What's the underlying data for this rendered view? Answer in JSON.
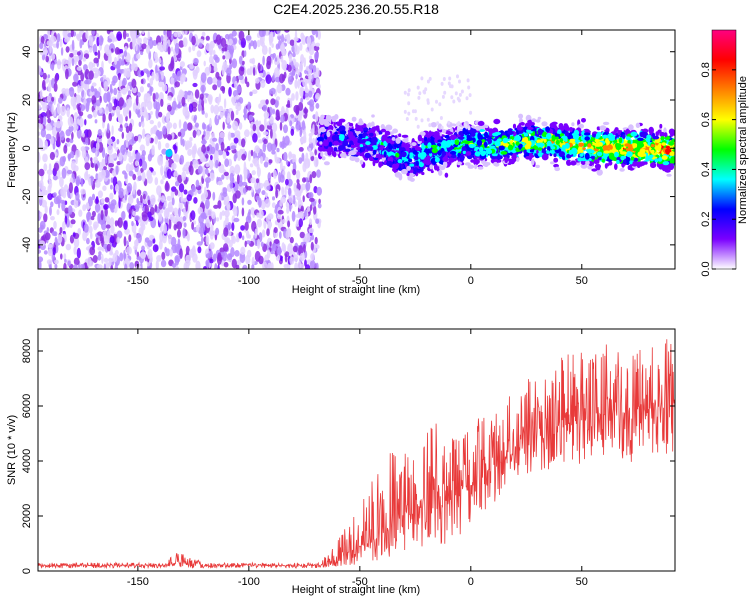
{
  "title": "C2E4.2025.236.20.55.R18",
  "chart_data": [
    {
      "type": "heatmap",
      "xlabel": "Height of straight line (km)",
      "ylabel": "Frequency (Hz)",
      "xlim": [
        -195,
        92
      ],
      "ylim": [
        -50,
        49
      ],
      "xticks": [
        -150,
        -100,
        -50,
        0,
        50
      ],
      "yticks": [
        -40,
        -20,
        0,
        20,
        40
      ],
      "grid": false,
      "colorbar": {
        "label": "Normalized spectral amplitude",
        "range": [
          0.0,
          0.96
        ],
        "ticks": [
          0.0,
          0.2,
          0.4,
          0.6,
          0.8
        ],
        "tick_labels": [
          "0.0",
          "0.2",
          "0.4",
          "0.6",
          "0.8"
        ],
        "colors": [
          "#ffffff",
          "#7a00ff",
          "#0000ff",
          "#00ffff",
          "#00ff00",
          "#ffff00",
          "#ff8000",
          "#ff0000",
          "#ff0080"
        ]
      },
      "regions": [
        {
          "name": "noise",
          "x_range": [
            -195,
            -68
          ],
          "freq_range": [
            -50,
            49
          ],
          "amplitude_range": [
            0.0,
            0.2
          ]
        },
        {
          "name": "signal band",
          "x_range": [
            -68,
            92
          ],
          "center_freq_hz": 1,
          "bandwidth_hz": 10,
          "amplitude_range": [
            0.05,
            0.9
          ]
        }
      ],
      "band_center": {
        "x": [
          -68,
          -60,
          -50,
          -40,
          -30,
          -25,
          -20,
          -10,
          0,
          10,
          20,
          30,
          40,
          50,
          60,
          70,
          80,
          92
        ],
        "freq": [
          5,
          4,
          3,
          1,
          -4,
          -5,
          -1,
          0,
          2,
          1,
          2,
          3,
          2,
          1,
          0,
          0,
          0,
          -1
        ]
      }
    },
    {
      "type": "line",
      "xlabel": "Height of straight line (km)",
      "ylabel": "SNR (10 * v/v)",
      "xlim": [
        -195,
        92
      ],
      "ylim": [
        0,
        8800
      ],
      "xticks": [
        -150,
        -100,
        -50,
        0,
        50
      ],
      "yticks": [
        0,
        2000,
        4000,
        6000,
        8000
      ],
      "grid": false,
      "color": "#e83a3a",
      "series": [
        {
          "x": [
            -195,
            -180,
            -160,
            -140,
            -131,
            -120,
            -100,
            -80,
            -68,
            -60,
            -55,
            -50,
            -45,
            -40,
            -35,
            -30,
            -25,
            -20,
            -15,
            -10,
            -5,
            0,
            5,
            10,
            15,
            20,
            25,
            30,
            35,
            40,
            45,
            50,
            55,
            60,
            65,
            70,
            75,
            80,
            85,
            92
          ],
          "y": [
            200,
            200,
            210,
            200,
            300,
            190,
            200,
            200,
            200,
            350,
            700,
            900,
            1100,
            1400,
            1700,
            2000,
            2100,
            2300,
            2400,
            2600,
            2900,
            3200,
            3500,
            3800,
            4100,
            4400,
            4600,
            4900,
            5100,
            5300,
            5400,
            5500,
            5600,
            5700,
            5700,
            5800,
            5900,
            5900,
            6000,
            6100
          ],
          "y_max": [
            300,
            300,
            310,
            300,
            750,
            290,
            300,
            300,
            300,
            1200,
            1800,
            2400,
            3500,
            4300,
            4500,
            4600,
            4800,
            5400,
            5600,
            5000,
            4800,
            5300,
            5800,
            6000,
            6200,
            6600,
            7400,
            7600,
            7800,
            7900,
            8000,
            8200,
            8400,
            8500,
            8100,
            8000,
            8300,
            8200,
            8700,
            8500
          ],
          "y_min": [
            100,
            100,
            110,
            100,
            110,
            90,
            100,
            100,
            100,
            150,
            200,
            250,
            300,
            400,
            500,
            600,
            700,
            800,
            900,
            1000,
            1200,
            1600,
            2000,
            2400,
            2800,
            3200,
            3400,
            3600,
            3600,
            3700,
            3800,
            3700,
            3900,
            4000,
            4100,
            3900,
            4000,
            4100,
            4200,
            4300
          ]
        }
      ]
    }
  ]
}
